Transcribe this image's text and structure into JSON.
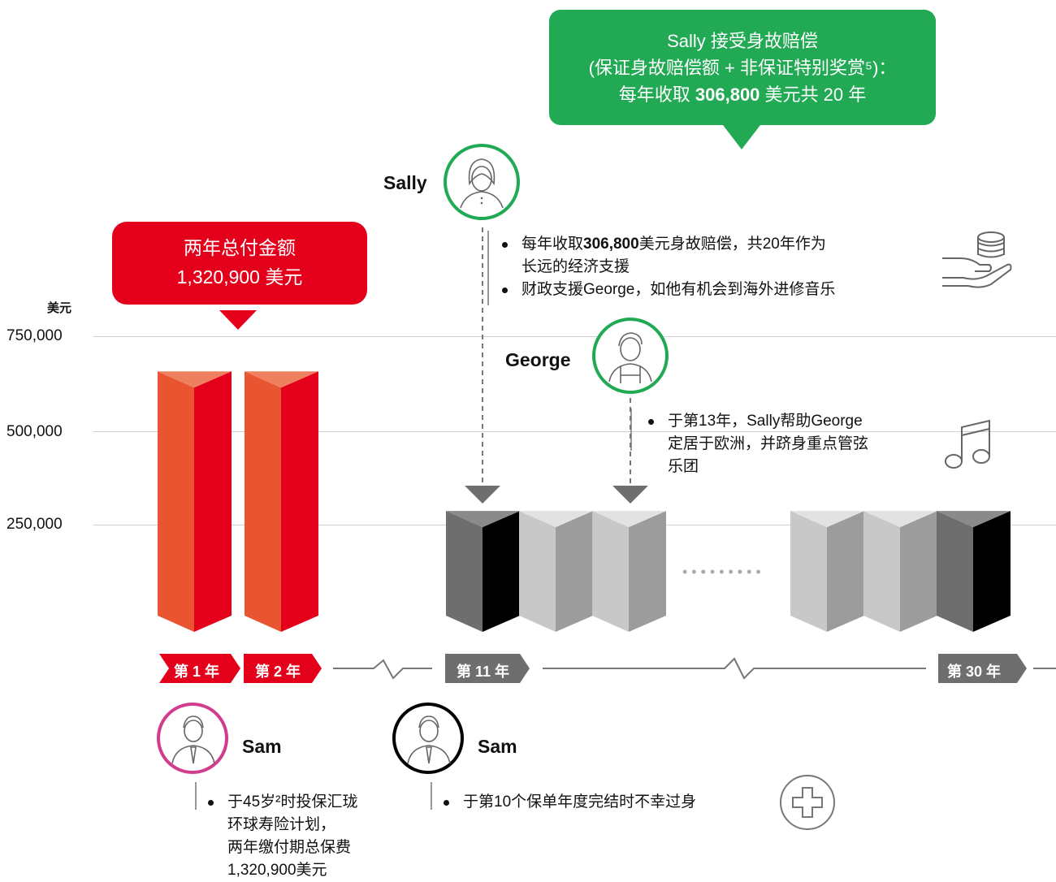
{
  "green_callout": {
    "line1": "Sally 接受身故赔偿",
    "line2": "(保证身故赔偿额 + 非保证特别奖赏⁵)：",
    "line3_pre": "每年收取 ",
    "line3_bold": "306,800",
    "line3_post": " 美元共 20 年",
    "color": "#21a954"
  },
  "red_callout": {
    "line1": "两年总付金额",
    "line2": "1,320,900 美元",
    "color": "#e4001b"
  },
  "y_axis": {
    "unit": "美元",
    "ticks": [
      "750,000",
      "500,000",
      "250,000"
    ]
  },
  "chart_data": {
    "type": "bar",
    "categories": [
      "第 1 年",
      "第 2 年",
      "第 11 年",
      "",
      "",
      "",
      "",
      "",
      "第 30 年"
    ],
    "values": [
      660900,
      660900,
      306800,
      306800,
      306800,
      306800,
      306800,
      306800,
      306800
    ],
    "ylim": [
      0,
      750000
    ],
    "colors": {
      "premium_front": "#e85530",
      "premium_side": "#e4001b",
      "payout_dark_front": "#6e6e6e",
      "payout_dark_side": "#000000",
      "payout_light_front": "#c8c8c8",
      "payout_light_side": "#9c9c9c"
    }
  },
  "sally": {
    "name": "Sally",
    "bullets": [
      {
        "pre": "每年收取",
        "bold": "306,800",
        "post": "美元身故赔偿，共20年作为"
      },
      {
        "pre": "长远的经济支援",
        "bold": "",
        "post": ""
      },
      {
        "pre": "财政支援George，如他有机会到海外进修音乐",
        "bold": "",
        "post": ""
      }
    ],
    "icon": "hand-coins-icon"
  },
  "george": {
    "name": "George",
    "bullet_lines": [
      "于第13年，Sally帮助George",
      "定居于欧洲，并跻身重点管弦",
      "乐团"
    ],
    "icon": "music-note-icon"
  },
  "timeline": {
    "labels": [
      "第 1 年",
      "第 2 年",
      "第 11 年",
      "第 30 年"
    ]
  },
  "sam_left": {
    "name": "Sam",
    "lines": [
      "于45岁²时投保汇珑",
      "环球寿险计划，",
      "两年缴付期总保费",
      "1,320,900美元"
    ]
  },
  "sam_right": {
    "name": "Sam",
    "line": "于第10个保单年度完结时不幸过身",
    "icon": "medical-cross-icon"
  }
}
